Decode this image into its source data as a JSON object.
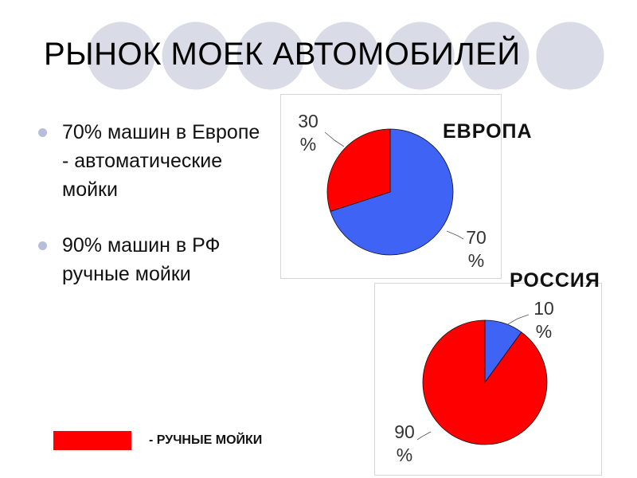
{
  "title": "РЫНОК МОЕК АВТОМОБИЛЕЙ",
  "bullets": [
    "70% машин в Европе - автоматические мойки",
    "90% машин в РФ ручные мойки"
  ],
  "legend": {
    "label": "- РУЧНЫЕ МОЙКИ",
    "color": "#ff0000"
  },
  "colors": {
    "automatic": "#3f63f4",
    "manual": "#ff0000",
    "bullet": "#b7bedb",
    "decor_circle": "#d9dbe6"
  },
  "chart_data": [
    {
      "type": "pie",
      "title": "ЕВРОПА",
      "slices": [
        {
          "label_lines": [
            "70",
            "%"
          ],
          "value": 70,
          "color": "#3f63f4"
        },
        {
          "label_lines": [
            "30",
            "%"
          ],
          "value": 30,
          "color": "#ff0000"
        }
      ]
    },
    {
      "type": "pie",
      "title": "РОССИЯ",
      "slices": [
        {
          "label_lines": [
            "10",
            "%"
          ],
          "value": 10,
          "color": "#3f63f4"
        },
        {
          "label_lines": [
            "90",
            "%"
          ],
          "value": 90,
          "color": "#ff0000"
        }
      ]
    }
  ]
}
